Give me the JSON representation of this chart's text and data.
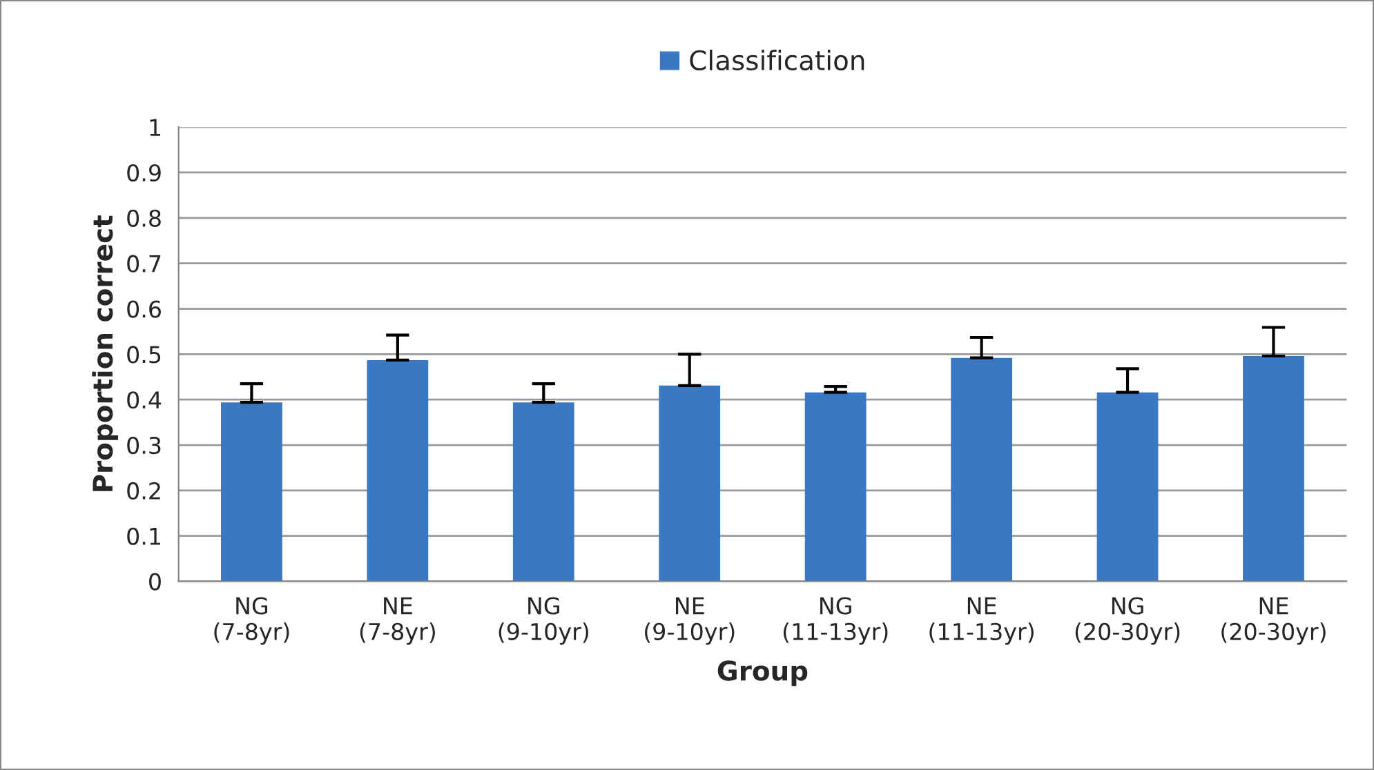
{
  "chart_data": {
    "type": "bar",
    "xlabel": "Group",
    "ylabel": "Proportion correct",
    "categories": [
      "NG\n(7-8yr)",
      "NE\n(7-8yr)",
      "NG\n(9-10yr)",
      "NE\n(9-10yr)",
      "NG\n(11-13yr)",
      "NE\n(11-13yr)",
      "NG\n(20-30yr)",
      "NE\n(20-30yr)"
    ],
    "series": [
      {
        "name": "Classification",
        "color": "#3b78c4",
        "values": [
          0.394,
          0.487,
          0.394,
          0.431,
          0.416,
          0.492,
          0.416,
          0.496
        ],
        "errors": [
          [
            0.394,
            0.435
          ],
          [
            0.487,
            0.542
          ],
          [
            0.394,
            0.435
          ],
          [
            0.431,
            0.5
          ],
          [
            0.416,
            0.429
          ],
          [
            0.492,
            0.537
          ],
          [
            0.416,
            0.468
          ],
          [
            0.496,
            0.559
          ]
        ]
      }
    ],
    "ylim": [
      0,
      1
    ],
    "yticks": [
      0,
      0.1,
      0.2,
      0.3,
      0.4,
      0.5,
      0.6,
      0.7,
      0.8,
      0.9,
      1
    ],
    "grid": "y",
    "legend": "top"
  }
}
